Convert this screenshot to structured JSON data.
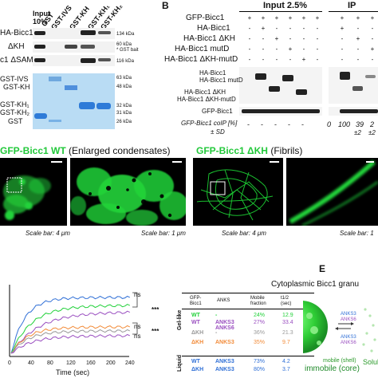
{
  "panel_a": {
    "col_headers": [
      "Input\n10%",
      "GST",
      "GST-IVS",
      "GST-KH",
      "GST-KH₁",
      "GST-KH₂"
    ],
    "row_labels": [
      "HA-Bicc1",
      "HA-Bicc1 ΔKH",
      "HA-Bicc1 ΔSAM"
    ],
    "row_labels_short": [
      "HA-Bicc1",
      "ΔKH",
      "c1 ΔSAM"
    ],
    "mw_right": [
      "134 kDa",
      "60 kDa",
      "* GST bait",
      "116 kDa"
    ],
    "gel_labels": [
      "GST-IVS",
      "GST-KH",
      "GST-KH₁",
      "GST-KH₂",
      "GST"
    ],
    "gel_mw": [
      "63 kDa",
      "48 kDa",
      "32 kDa",
      "31 kDa",
      "26 kDa"
    ]
  },
  "panel_b": {
    "letter": "B",
    "input_title": "Input 2.5%",
    "ip_title": "IP",
    "row_labels": [
      "GFP-Bicc1",
      "HA-Bicc1",
      "HA-Bicc1 ΔKH",
      "HA-Bicc1 mutD",
      "HA-Bicc1 ΔKH-mutD"
    ],
    "blot_labels": [
      "HA-Bicc1",
      "HA-Bicc1 mutD",
      "HA-Bicc1 ΔKH",
      "HA-Bicc1 ΔKH-mutD",
      "GFP-Bicc1"
    ],
    "coip_label": "GFP-Bicc1 coIP [%]",
    "sd_label": "± SD",
    "coip_values": [
      "0",
      "100",
      "39",
      "2"
    ],
    "sd_values": [
      "±2",
      "±2"
    ]
  },
  "panel_c": {
    "title_bold": "GFP-Bicc1 WT",
    "title_rest": "(Enlarged condensates)",
    "scale_left": "Scale bar: 4 μm",
    "scale_right": "Scale bar: 1 μm"
  },
  "panel_d": {
    "title_bold": "GFP-Bicc1 ΔKH",
    "title_rest": "(Fibrils)",
    "scale_left": "Scale bar: 4 μm",
    "scale_right": "Scale bar: 1"
  },
  "frap_chart": {
    "xlabel": "Time (sec)",
    "xticks": [
      "0",
      "40",
      "80",
      "120",
      "160",
      "200",
      "240"
    ],
    "sig": [
      "ns",
      "***",
      "ns",
      "ns",
      "***"
    ]
  },
  "table": {
    "headers": [
      "GFP-\nBicc1",
      "ANKS",
      "Mobile\nfraction",
      "t1/2\n(sec)"
    ],
    "groups": [
      "Gel-like",
      "Liquid"
    ],
    "rows": [
      {
        "gfp": "WT",
        "anks": "-",
        "mobile": "24%",
        "t": "12.9"
      },
      {
        "gfp": "WT",
        "anks": "ANKS3\nANKS6",
        "mobile": "27%",
        "t": "33.4"
      },
      {
        "gfp": "ΔKH",
        "anks": "-",
        "mobile": "36%",
        "t": "21.3"
      },
      {
        "gfp": "ΔKH",
        "anks": "ANKS3",
        "mobile": "35%",
        "t": "9.7"
      },
      {
        "gfp": "WT",
        "anks": "ANKS3",
        "mobile": "73%",
        "t": "4.2"
      },
      {
        "gfp": "ΔKH",
        "anks": "ANKS3",
        "mobile": "80%",
        "t": "3.7"
      }
    ]
  },
  "panel_e": {
    "letter": "E",
    "title": "Cytoplasmic Bicc1 granu",
    "labels": [
      "ANKS3",
      "ANKS6",
      "ANKS3",
      "ANKS6"
    ],
    "mobile": "mobile (shell)",
    "immobile": "immobile (core)",
    "solub": "Solub"
  },
  "colors": {
    "green": "#22d13a",
    "blue": "#2f6fd6",
    "purple": "#9a4fc0",
    "orange": "#f28c3a",
    "ns_gray": "#555555"
  }
}
